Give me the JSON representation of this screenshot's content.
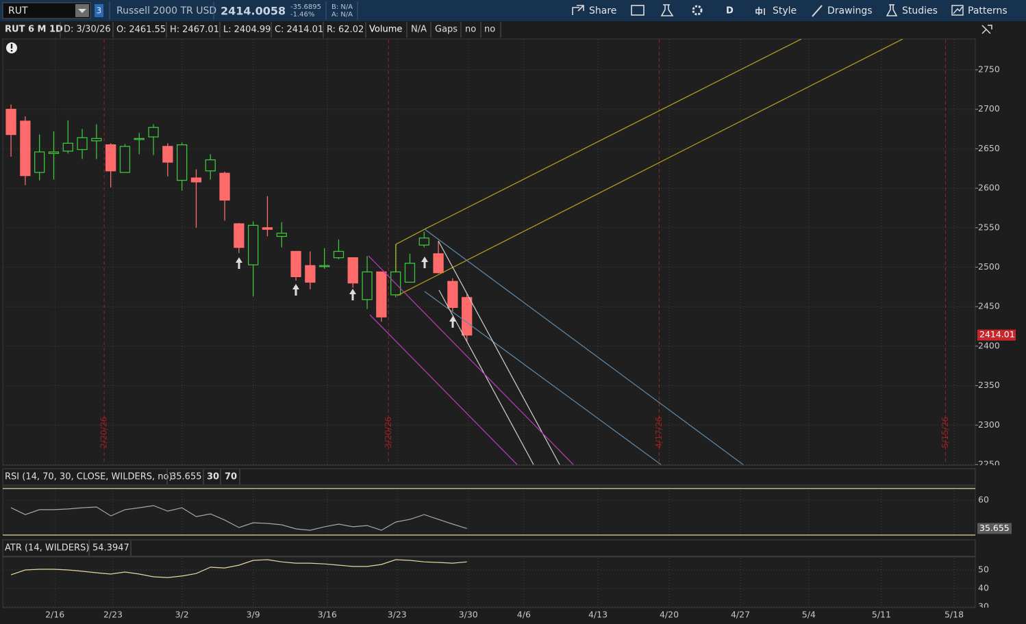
{
  "toolbar": {
    "symbol": "RUT",
    "badge": "3",
    "description": "Russell 2000 TR USD",
    "last": "2414.0058",
    "change": "-35.6895",
    "change_pct": "-1.46%",
    "bid": "B: N/A",
    "ask": "A: N/A",
    "buttons": [
      "Share",
      "D",
      "Style",
      "Drawings",
      "Studies",
      "Patterns"
    ]
  },
  "info_bar": {
    "symbol": "RUT 6 M 1D",
    "date": "D: 3/30/26",
    "open_label": "O:",
    "high_label": "H:",
    "low_label": "L:",
    "close_label": "C:",
    "range_label": "R:",
    "range": 62.02,
    "items": [
      "Volume",
      "N/A",
      "Gaps",
      "no",
      "no"
    ]
  },
  "chart_data": [
    {
      "type": "candlestick",
      "x": [
        0,
        1,
        2,
        3,
        4,
        5,
        6,
        7,
        8,
        9,
        10,
        11,
        12,
        13,
        14,
        15,
        16,
        17,
        18,
        19,
        20,
        21,
        22,
        23,
        24,
        25,
        26,
        27,
        28,
        29,
        30,
        31,
        32
      ],
      "open": [
        2700,
        2685,
        2620,
        2644,
        2647,
        2649,
        2660,
        2655,
        2620,
        2662,
        2665,
        2653,
        2610,
        2613,
        2622,
        2619,
        2555,
        2503,
        2550,
        2539,
        2520,
        2502,
        2501,
        2512,
        2512,
        2459,
        2494,
        2465,
        2481,
        2528,
        2517,
        2482,
        2461.55
      ],
      "high": [
        2706,
        2691,
        2668,
        2672,
        2686,
        2675,
        2681,
        2657,
        2656,
        2670,
        2681,
        2657,
        2658,
        2624,
        2643,
        2621,
        2556,
        2558,
        2590,
        2557,
        2520,
        2520,
        2524,
        2535,
        2512,
        2514,
        2494,
        2529,
        2517,
        2545,
        2533,
        2486,
        2467.01
      ],
      "low": [
        2640,
        2604,
        2610,
        2611,
        2644,
        2637,
        2637,
        2601,
        2620,
        2643,
        2642,
        2615,
        2597,
        2550,
        2611,
        2559,
        2518,
        2463,
        2539,
        2525,
        2483,
        2472,
        2498,
        2510,
        2474,
        2447,
        2431,
        2462,
        2481,
        2525,
        2492,
        2444,
        2404.99
      ],
      "close": [
        2668,
        2616,
        2646,
        2646,
        2657,
        2664,
        2663,
        2622,
        2653,
        2663,
        2677,
        2633,
        2655,
        2608,
        2636,
        2585,
        2525,
        2553,
        2548,
        2543,
        2488,
        2481,
        2502,
        2520,
        2480,
        2494,
        2437,
        2494,
        2505,
        2537,
        2493,
        2449,
        2414.01
      ],
      "up_color": "#3cc43c",
      "down_color": "#ff6b6b",
      "xlim": [
        -0.58,
        67.69
      ],
      "xticks": [
        {
          "value": 3.08,
          "label": "2/16"
        },
        {
          "value": 7.16,
          "label": "2/23"
        },
        {
          "value": 12.0,
          "label": "3/2"
        },
        {
          "value": 17.0,
          "label": "3/9"
        },
        {
          "value": 22.2,
          "label": "3/16"
        },
        {
          "value": 27.1,
          "label": "3/23"
        },
        {
          "value": 32.1,
          "label": "3/30"
        },
        {
          "value": 36.0,
          "label": "4/6"
        },
        {
          "value": 41.2,
          "label": "4/13"
        },
        {
          "value": 46.2,
          "label": "4/20"
        },
        {
          "value": 51.2,
          "label": "4/27"
        },
        {
          "value": 56.0,
          "label": "5/4"
        },
        {
          "value": 61.1,
          "label": "5/11"
        },
        {
          "value": 66.2,
          "label": "5/18"
        }
      ],
      "ylim": [
        2250,
        2789
      ],
      "yticks": [
        2750,
        2700,
        2650,
        2600,
        2550,
        2500,
        2450,
        2400,
        2350,
        2300,
        2250
      ],
      "events": [
        {
          "value": 6.54,
          "label": "2/20/26"
        },
        {
          "value": 26.5,
          "label": "3/20/26"
        },
        {
          "value": 45.5,
          "label": "4/17/26"
        },
        {
          "value": 65.6,
          "label": "5/15/26"
        }
      ],
      "event_color": "#a02020",
      "grid": true
    },
    {
      "type": "line",
      "title": "RSI (14, 70, 30, CLOSE, WILDERS, no)",
      "values": [
        53.5,
        47.6,
        51.8,
        51.8,
        52.4,
        53.5,
        54.1,
        46.5,
        51.8,
        53.5,
        55.3,
        50.6,
        53.5,
        45.9,
        48.2,
        42.9,
        36.5,
        40.6,
        40.0,
        38.8,
        35.3,
        34.1,
        37.1,
        39.4,
        37.1,
        38.2,
        34.1,
        41.2,
        43.5,
        47.6,
        43.5,
        39.4,
        35.655
      ],
      "color": "#a8a8a8",
      "levels": [
        30,
        70
      ],
      "level_color": "#e6d9a0",
      "ylim": [
        30,
        71.18
      ],
      "yticks": [
        60
      ]
    },
    {
      "type": "line",
      "title": "ATR (14, WILDERS)",
      "values": [
        47.4,
        50.0,
        50.4,
        50.4,
        50.0,
        49.3,
        48.5,
        47.8,
        48.9,
        47.8,
        46.3,
        45.9,
        46.7,
        48.1,
        51.5,
        51.1,
        52.6,
        55.2,
        55.6,
        54.4,
        53.7,
        53.7,
        53.3,
        52.6,
        51.9,
        51.9,
        53.0,
        55.6,
        55.2,
        54.4,
        54.1,
        53.7,
        54.3947
      ],
      "color": "#e6d9a0",
      "ylim": [
        29.6,
        56.7
      ],
      "yticks": [
        50,
        40,
        30
      ]
    }
  ]
}
